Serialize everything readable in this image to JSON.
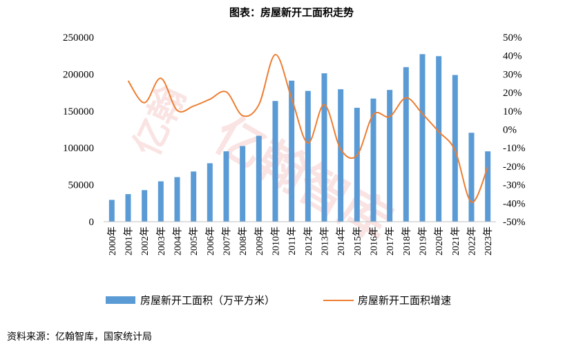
{
  "chart_data": {
    "type": "bar+line",
    "title": "图表：房屋新开工面积走势",
    "categories": [
      "2000年",
      "2001年",
      "2002年",
      "2003年",
      "2004年",
      "2005年",
      "2006年",
      "2007年",
      "2008年",
      "2009年",
      "2010年",
      "2011年",
      "2012年",
      "2013年",
      "2014年",
      "2015年",
      "2016年",
      "2017年",
      "2018年",
      "2019年",
      "2020年",
      "2021年",
      "2022年",
      "2023年"
    ],
    "series": [
      {
        "name": "房屋新开工面积（万平方米）",
        "type": "bar",
        "axis": "left",
        "color": "#5b9bd5",
        "values": [
          29583,
          37394,
          42801,
          54708,
          60414,
          68064,
          79253,
          95402,
          102553,
          116422,
          163647,
          191237,
          177334,
          201208,
          179592,
          154454,
          166928,
          178654,
          209537,
          227154,
          224433,
          198895,
          120587,
          95376
        ]
      },
      {
        "name": "房屋新开工面积增速",
        "type": "line",
        "axis": "right",
        "color": "#ed7d31",
        "values": [
          null,
          26.4,
          14.5,
          27.8,
          10.4,
          12.7,
          16.4,
          20.4,
          7.5,
          13.5,
          40.6,
          16.9,
          -7.3,
          13.5,
          -10.7,
          -14.0,
          8.1,
          7.0,
          17.2,
          8.5,
          -1.2,
          -11.4,
          -39.4,
          -20.4
        ]
      }
    ],
    "y_left": {
      "min": 0,
      "max": 250000,
      "ticks": [
        "0",
        "50000",
        "100000",
        "150000",
        "200000",
        "250000"
      ]
    },
    "y_right": {
      "min": -50,
      "max": 50,
      "ticks": [
        "-50%",
        "-40%",
        "-30%",
        "-20%",
        "-10%",
        "0%",
        "10%",
        "20%",
        "30%",
        "40%",
        "50%"
      ]
    },
    "legend": [
      "房屋新开工面积（万平方米）",
      "房屋新开工面积增速"
    ],
    "legend_position": "bottom",
    "grid": false
  },
  "watermark": [
    "亿翰",
    "亿翰智库"
  ],
  "source": "资料来源：亿翰智库，国家统计局"
}
